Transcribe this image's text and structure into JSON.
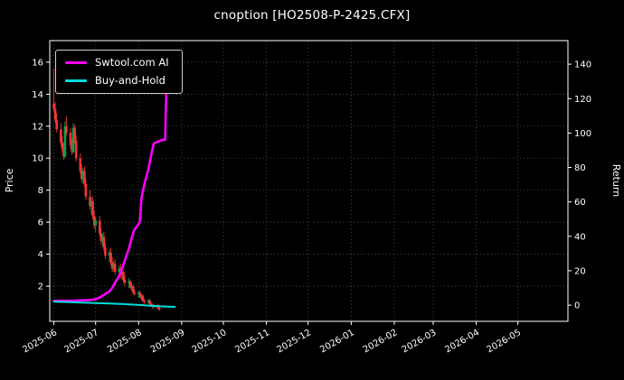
{
  "window": {
    "title": "cnoption [HO2508-P-2425.CFX]"
  },
  "chart_data": {
    "type": "candlestick+line",
    "title": "cnoption [HO2508-P-2425.CFX]",
    "ylabel_left": "Price",
    "ylabel_right": "Return",
    "grid": true,
    "legend_position": "upper-left",
    "x_tick_labels": [
      "2025-06",
      "2025-07",
      "2025-08",
      "2025-09",
      "2025-10",
      "2025-11",
      "2025-12",
      "2026-01",
      "2026-02",
      "2026-03",
      "2026-04",
      "2026-05"
    ],
    "x_tick_days": [
      0,
      30,
      61,
      92,
      122,
      153,
      183,
      214,
      245,
      273,
      304,
      334
    ],
    "x_range_days": [
      -3,
      370
    ],
    "y_left_ticks": [
      2,
      4,
      6,
      8,
      10,
      12,
      14,
      16
    ],
    "y_left_range": [
      -0.2,
      17.35
    ],
    "y_right_ticks": [
      0,
      20,
      40,
      60,
      80,
      100,
      120,
      140
    ],
    "y_right_range": [
      -9.4,
      153.7
    ],
    "colors": {
      "bg": "#000000",
      "fg": "#ffffff",
      "grid": "#8a8a8a",
      "up": "#00a651",
      "down": "#f23535",
      "ai": "#ff00ff",
      "bh": "#00dcdc"
    },
    "candles_format": [
      "day",
      "open",
      "high",
      "low",
      "close"
    ],
    "candles": [
      [
        0,
        13.4,
        15.6,
        12.9,
        13.1
      ],
      [
        1,
        13.1,
        13.5,
        12.2,
        12.4
      ],
      [
        2,
        12.4,
        12.8,
        11.6,
        11.8
      ],
      [
        5,
        11.8,
        12.2,
        10.8,
        11.0
      ],
      [
        6,
        11.0,
        11.4,
        10.4,
        10.6
      ],
      [
        7,
        10.6,
        10.9,
        9.9,
        10.1
      ],
      [
        8,
        10.1,
        12.3,
        10.0,
        12.0
      ],
      [
        9,
        12.0,
        12.6,
        11.4,
        11.6
      ],
      [
        12,
        11.6,
        11.9,
        10.6,
        10.8
      ],
      [
        13,
        10.8,
        11.2,
        10.2,
        10.4
      ],
      [
        14,
        10.4,
        12.2,
        10.3,
        11.9
      ],
      [
        15,
        11.9,
        12.1,
        10.9,
        11.1
      ],
      [
        16,
        11.1,
        11.4,
        9.8,
        10.0
      ],
      [
        19,
        10.0,
        10.3,
        9.0,
        9.2
      ],
      [
        20,
        9.2,
        9.6,
        8.5,
        8.7
      ],
      [
        21,
        8.7,
        9.4,
        8.4,
        9.2
      ],
      [
        22,
        9.2,
        9.5,
        8.2,
        8.4
      ],
      [
        23,
        8.4,
        8.7,
        7.4,
        7.6
      ],
      [
        26,
        7.6,
        8.0,
        6.8,
        7.0
      ],
      [
        27,
        7.0,
        7.5,
        6.5,
        7.3
      ],
      [
        28,
        7.3,
        7.6,
        6.2,
        6.4
      ],
      [
        29,
        6.4,
        6.7,
        5.6,
        5.8
      ],
      [
        30,
        5.8,
        6.3,
        5.4,
        6.1
      ],
      [
        33,
        6.1,
        6.4,
        5.1,
        5.3
      ],
      [
        34,
        5.3,
        5.6,
        4.6,
        4.8
      ],
      [
        35,
        4.8,
        5.3,
        4.5,
        5.1
      ],
      [
        36,
        5.1,
        5.4,
        4.2,
        4.4
      ],
      [
        37,
        4.4,
        4.7,
        3.7,
        3.9
      ],
      [
        40,
        3.9,
        4.3,
        3.5,
        4.1
      ],
      [
        41,
        4.1,
        4.4,
        3.3,
        3.5
      ],
      [
        42,
        3.5,
        3.8,
        2.9,
        3.1
      ],
      [
        43,
        3.1,
        3.6,
        2.9,
        3.4
      ],
      [
        44,
        3.4,
        3.7,
        2.7,
        2.9
      ],
      [
        47,
        2.9,
        3.3,
        2.6,
        3.1
      ],
      [
        48,
        3.1,
        3.4,
        2.5,
        2.7
      ],
      [
        49,
        2.7,
        3.1,
        2.4,
        2.9
      ],
      [
        50,
        2.9,
        3.0,
        2.2,
        2.4
      ],
      [
        51,
        2.4,
        2.7,
        2.0,
        2.2
      ],
      [
        54,
        2.2,
        2.5,
        1.9,
        2.3
      ],
      [
        55,
        2.3,
        2.4,
        1.8,
        1.9
      ],
      [
        56,
        1.9,
        2.2,
        1.7,
        2.0
      ],
      [
        57,
        2.0,
        2.1,
        1.5,
        1.6
      ],
      [
        58,
        1.6,
        1.8,
        1.4,
        1.5
      ],
      [
        61,
        1.5,
        1.7,
        1.3,
        1.6
      ],
      [
        62,
        1.6,
        1.7,
        1.2,
        1.3
      ],
      [
        63,
        1.3,
        1.5,
        1.1,
        1.4
      ],
      [
        64,
        1.4,
        1.5,
        1.0,
        1.1
      ],
      [
        65,
        1.1,
        1.2,
        0.9,
        1.0
      ],
      [
        68,
        1.0,
        1.2,
        0.9,
        1.1
      ],
      [
        69,
        1.1,
        1.2,
        0.8,
        0.9
      ],
      [
        70,
        0.9,
        1.0,
        0.7,
        0.8
      ],
      [
        71,
        0.8,
        0.9,
        0.6,
        0.7
      ],
      [
        72,
        0.7,
        0.9,
        0.6,
        0.8
      ],
      [
        75,
        0.8,
        0.9,
        0.5,
        0.6
      ],
      [
        76,
        0.6,
        0.7,
        0.45,
        0.55
      ]
    ],
    "series": [
      {
        "name": "Swtool.com AI",
        "color_key": "ai",
        "axis": "right",
        "width": 2.6,
        "points": [
          [
            0,
            2.5
          ],
          [
            5,
            2.5
          ],
          [
            10,
            2.5
          ],
          [
            15,
            2.6
          ],
          [
            20,
            2.8
          ],
          [
            26,
            3.0
          ],
          [
            30,
            3.5
          ],
          [
            33,
            4.5
          ],
          [
            36,
            6
          ],
          [
            40,
            8
          ],
          [
            42,
            10
          ],
          [
            44,
            13
          ],
          [
            47,
            17
          ],
          [
            49,
            21
          ],
          [
            51,
            26
          ],
          [
            54,
            33
          ],
          [
            56,
            39
          ],
          [
            58,
            44
          ],
          [
            61,
            47
          ],
          [
            62,
            49
          ],
          [
            63,
            62
          ],
          [
            64,
            66
          ],
          [
            65,
            70
          ],
          [
            68,
            79
          ],
          [
            70,
            87
          ],
          [
            71,
            91
          ],
          [
            72,
            94
          ],
          [
            75,
            95
          ],
          [
            78,
            96
          ],
          [
            80,
            96
          ],
          [
            81,
            125
          ]
        ]
      },
      {
        "name": "Buy-and-Hold",
        "color_key": "bh",
        "axis": "right",
        "width": 2,
        "points": [
          [
            0,
            2
          ],
          [
            10,
            1.8
          ],
          [
            20,
            1.5
          ],
          [
            30,
            1.2
          ],
          [
            40,
            1.0
          ],
          [
            50,
            0.6
          ],
          [
            60,
            0.2
          ],
          [
            70,
            -0.4
          ],
          [
            80,
            -0.8
          ],
          [
            87,
            -1.0
          ]
        ]
      }
    ]
  },
  "legend": {
    "items": [
      {
        "label": "Swtool.com AI"
      },
      {
        "label": "Buy-and-Hold"
      }
    ]
  }
}
